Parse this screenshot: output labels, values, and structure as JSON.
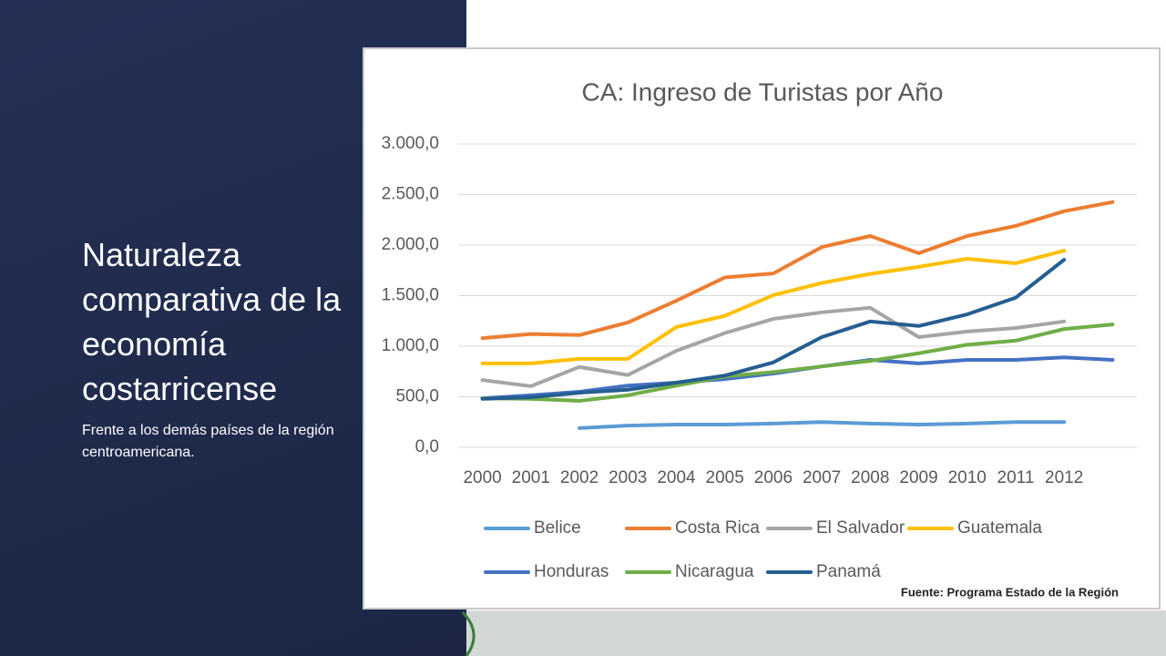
{
  "slide": {
    "title": "Naturaleza comparativa de la economía costarricense",
    "subtitle": "Frente a los demás países de la región centroamericana.",
    "source": "Fuente: Programa Estado de la Región"
  },
  "chart_data": {
    "type": "line",
    "title": "CA: Ingreso de Turistas por Año",
    "categories": [
      "2000",
      "2001",
      "2002",
      "2003",
      "2004",
      "2005",
      "2006",
      "2007",
      "2008",
      "2009",
      "2010",
      "2011",
      "2012",
      null
    ],
    "series": [
      {
        "name": "Belice",
        "color": "#5b9bd5",
        "values": [
          null,
          null,
          190,
          215,
          225,
          225,
          235,
          250,
          235,
          225,
          235,
          250,
          250,
          null
        ]
      },
      {
        "name": "Costa Rica",
        "color": "#ed7d31",
        "values": [
          1080,
          1120,
          1110,
          1235,
          1450,
          1680,
          1720,
          1980,
          2090,
          1920,
          2090,
          2190,
          2335,
          2425
        ]
      },
      {
        "name": "El Salvador",
        "color": "#a5a5a5",
        "values": [
          665,
          605,
          795,
          715,
          955,
          1130,
          1270,
          1335,
          1380,
          1090,
          1145,
          1180,
          1245,
          null
        ]
      },
      {
        "name": "Guatemala",
        "color": "#ffc000",
        "values": [
          830,
          830,
          875,
          875,
          1190,
          1300,
          1505,
          1625,
          1715,
          1785,
          1865,
          1820,
          1945,
          null
        ]
      },
      {
        "name": "Honduras",
        "color": "#4472c4",
        "values": [
          485,
          515,
          550,
          610,
          640,
          675,
          730,
          800,
          865,
          830,
          865,
          865,
          890,
          865
        ]
      },
      {
        "name": "Nicaragua",
        "color": "#70ad47",
        "values": [
          485,
          480,
          460,
          515,
          610,
          700,
          745,
          800,
          855,
          930,
          1015,
          1055,
          1170,
          1215
        ]
      },
      {
        "name": "Panamá",
        "color": "#255e91",
        "values": [
          480,
          495,
          540,
          570,
          640,
          710,
          840,
          1090,
          1245,
          1200,
          1315,
          1480,
          1855,
          null
        ]
      }
    ],
    "ylim": [
      0,
      3000
    ],
    "yticks": [
      {
        "value": 0,
        "label": "0,0"
      },
      {
        "value": 500,
        "label": "500,0"
      },
      {
        "value": 1000,
        "label": "1.000,0"
      },
      {
        "value": 1500,
        "label": "1.500,0"
      },
      {
        "value": 2000,
        "label": "2.000,0"
      },
      {
        "value": 2500,
        "label": "2.500,0"
      },
      {
        "value": 3000,
        "label": "3.000,0"
      }
    ],
    "grid": true,
    "legend": "bottom"
  }
}
